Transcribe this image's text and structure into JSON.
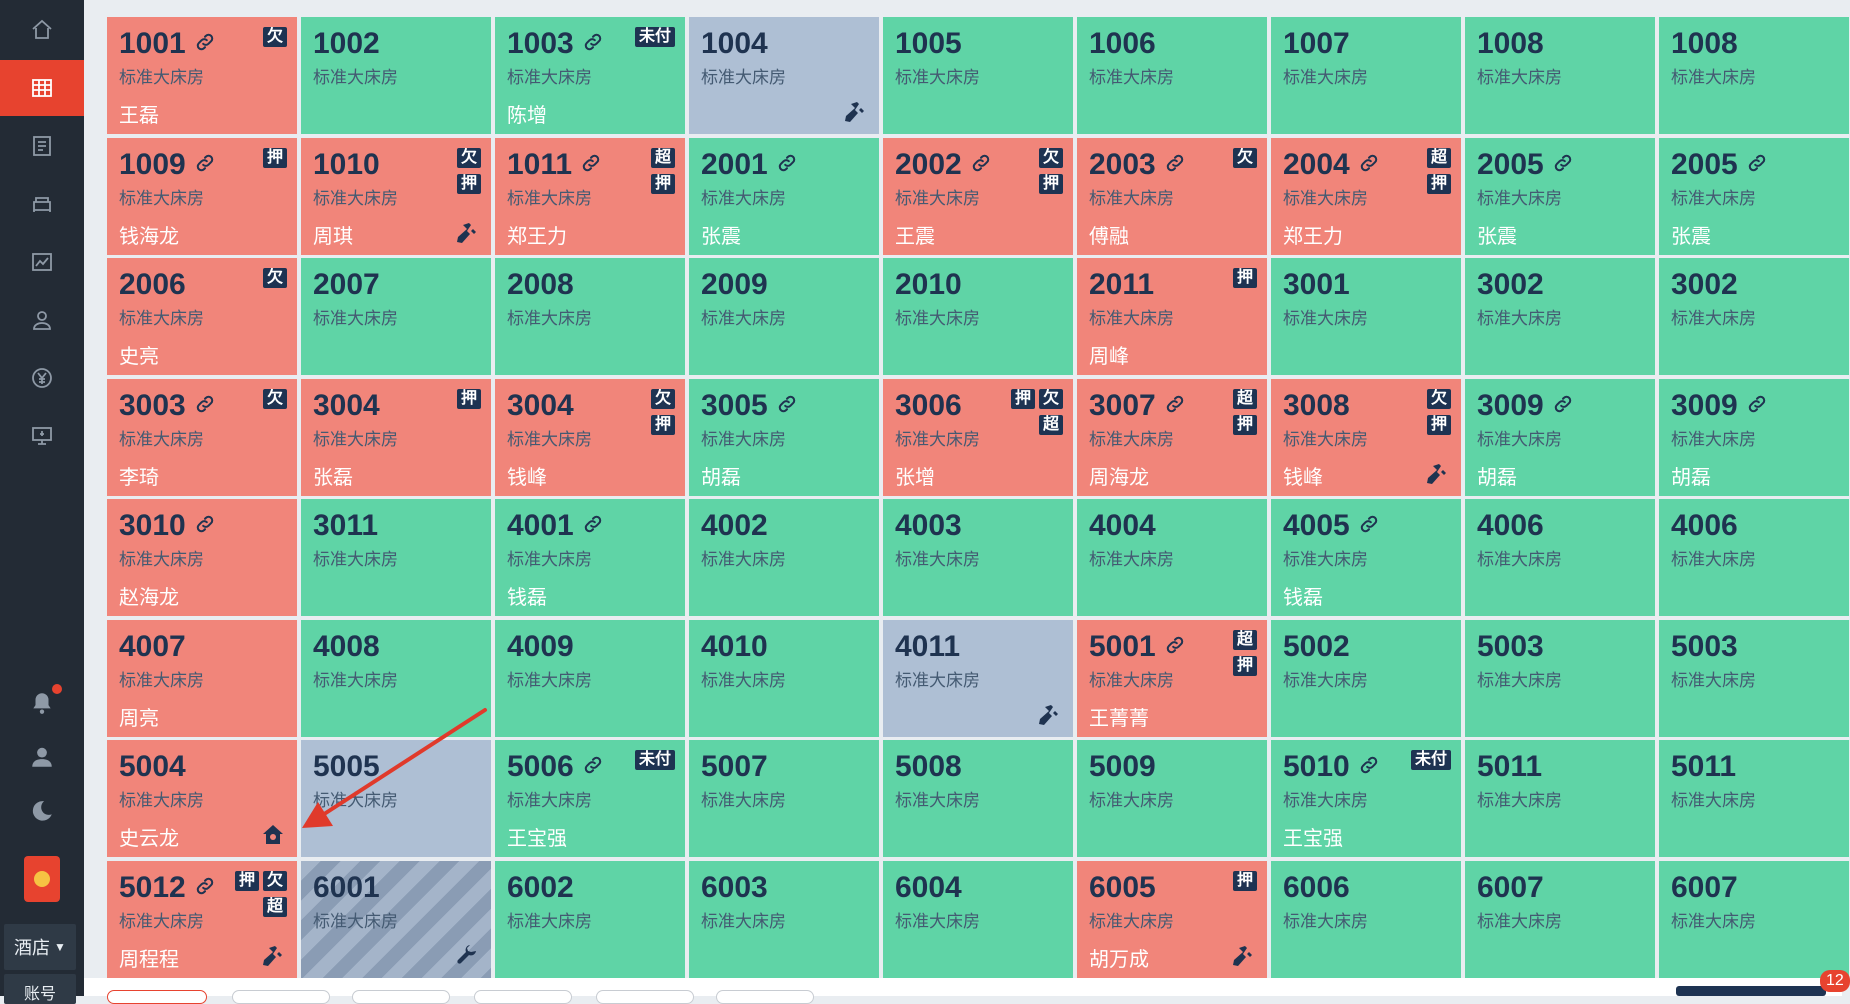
{
  "sidebar": {
    "nav": [
      {
        "name": "home-icon"
      },
      {
        "name": "room-grid-icon",
        "active": true
      },
      {
        "name": "orders-icon"
      },
      {
        "name": "rooms-icon"
      },
      {
        "name": "reports-icon"
      },
      {
        "name": "members-icon"
      },
      {
        "name": "finance-icon"
      },
      {
        "name": "screen-icon"
      }
    ],
    "hotel_label": "酒店",
    "account_label": "账号"
  },
  "notification_count": "12",
  "tags": {
    "owe": "欠",
    "deposit": "押",
    "over": "超",
    "unpaid": "未付"
  },
  "rooms": [
    {
      "no": "1001",
      "type": "标准大床房",
      "guest": "王磊",
      "status": "red",
      "link": true,
      "tags": [
        [
          "欠"
        ]
      ]
    },
    {
      "no": "1002",
      "type": "标准大床房",
      "guest": "",
      "status": "green",
      "link": false,
      "tags": []
    },
    {
      "no": "1003",
      "type": "标准大床房",
      "guest": "陈增",
      "status": "green",
      "link": true,
      "tags": [
        [
          "未付"
        ]
      ]
    },
    {
      "no": "1004",
      "type": "标准大床房",
      "guest": "",
      "status": "gray",
      "link": false,
      "tags": [],
      "tool": "broom"
    },
    {
      "no": "1005",
      "type": "标准大床房",
      "guest": "",
      "status": "green",
      "link": false,
      "tags": []
    },
    {
      "no": "1006",
      "type": "标准大床房",
      "guest": "",
      "status": "green",
      "link": false,
      "tags": []
    },
    {
      "no": "1007",
      "type": "标准大床房",
      "guest": "",
      "status": "green",
      "link": false,
      "tags": []
    },
    {
      "no": "1008",
      "type": "标准大床房",
      "guest": "",
      "status": "green",
      "link": false,
      "tags": []
    },
    {
      "no": "1008",
      "type": "标准大床房",
      "guest": "",
      "status": "green",
      "link": false,
      "tags": []
    },
    {
      "no": "1009",
      "type": "标准大床房",
      "guest": "钱海龙",
      "status": "red",
      "link": true,
      "tags": [
        [
          "押"
        ]
      ]
    },
    {
      "no": "1010",
      "type": "标准大床房",
      "guest": "周琪",
      "status": "red",
      "link": false,
      "tags": [
        [
          "欠"
        ],
        [
          "押"
        ]
      ],
      "tool": "broom"
    },
    {
      "no": "1011",
      "type": "标准大床房",
      "guest": "郑王力",
      "status": "red",
      "link": true,
      "tags": [
        [
          "超"
        ],
        [
          "押"
        ]
      ]
    },
    {
      "no": "2001",
      "type": "标准大床房",
      "guest": "张震",
      "status": "green",
      "link": true,
      "tags": []
    },
    {
      "no": "2002",
      "type": "标准大床房",
      "guest": "王震",
      "status": "red",
      "link": true,
      "tags": [
        [
          "欠"
        ],
        [
          "押"
        ]
      ]
    },
    {
      "no": "2003",
      "type": "标准大床房",
      "guest": "傅融",
      "status": "red",
      "link": true,
      "tags": [
        [
          "欠"
        ]
      ]
    },
    {
      "no": "2004",
      "type": "标准大床房",
      "guest": "郑王力",
      "status": "red",
      "link": true,
      "tags": [
        [
          "超"
        ],
        [
          "押"
        ]
      ]
    },
    {
      "no": "2005",
      "type": "标准大床房",
      "guest": "张震",
      "status": "green",
      "link": true,
      "tags": []
    },
    {
      "no": "2005",
      "type": "标准大床房",
      "guest": "张震",
      "status": "green",
      "link": true,
      "tags": []
    },
    {
      "no": "2006",
      "type": "标准大床房",
      "guest": "史亮",
      "status": "red",
      "link": false,
      "tags": [
        [
          "欠"
        ]
      ]
    },
    {
      "no": "2007",
      "type": "标准大床房",
      "guest": "",
      "status": "green",
      "link": false,
      "tags": []
    },
    {
      "no": "2008",
      "type": "标准大床房",
      "guest": "",
      "status": "green",
      "link": false,
      "tags": []
    },
    {
      "no": "2009",
      "type": "标准大床房",
      "guest": "",
      "status": "green",
      "link": false,
      "tags": []
    },
    {
      "no": "2010",
      "type": "标准大床房",
      "guest": "",
      "status": "green",
      "link": false,
      "tags": []
    },
    {
      "no": "2011",
      "type": "标准大床房",
      "guest": "周峰",
      "status": "red",
      "link": false,
      "tags": [
        [
          "押"
        ]
      ]
    },
    {
      "no": "3001",
      "type": "标准大床房",
      "guest": "",
      "status": "green",
      "link": false,
      "tags": []
    },
    {
      "no": "3002",
      "type": "标准大床房",
      "guest": "",
      "status": "green",
      "link": false,
      "tags": []
    },
    {
      "no": "3002",
      "type": "标准大床房",
      "guest": "",
      "status": "green",
      "link": false,
      "tags": []
    },
    {
      "no": "3003",
      "type": "标准大床房",
      "guest": "李琦",
      "status": "red",
      "link": true,
      "tags": [
        [
          "欠"
        ]
      ]
    },
    {
      "no": "3004",
      "type": "标准大床房",
      "guest": "张磊",
      "status": "red",
      "link": false,
      "tags": [
        [
          "押"
        ]
      ]
    },
    {
      "no": "3004",
      "type": "标准大床房",
      "guest": "钱峰",
      "status": "red",
      "link": false,
      "tags": [
        [
          "欠"
        ],
        [
          "押"
        ]
      ]
    },
    {
      "no": "3005",
      "type": "标准大床房",
      "guest": "胡磊",
      "status": "green",
      "link": true,
      "tags": []
    },
    {
      "no": "3006",
      "type": "标准大床房",
      "guest": "张增",
      "status": "red",
      "link": false,
      "tags": [
        [
          "押",
          "欠"
        ],
        [
          "超"
        ]
      ]
    },
    {
      "no": "3007",
      "type": "标准大床房",
      "guest": "周海龙",
      "status": "red",
      "link": true,
      "tags": [
        [
          "超"
        ],
        [
          "押"
        ]
      ]
    },
    {
      "no": "3008",
      "type": "标准大床房",
      "guest": "钱峰",
      "status": "red",
      "link": false,
      "tags": [
        [
          "欠"
        ],
        [
          "押"
        ]
      ],
      "tool": "broom"
    },
    {
      "no": "3009",
      "type": "标准大床房",
      "guest": "胡磊",
      "status": "green",
      "link": true,
      "tags": []
    },
    {
      "no": "3009",
      "type": "标准大床房",
      "guest": "胡磊",
      "status": "green",
      "link": true,
      "tags": []
    },
    {
      "no": "3010",
      "type": "标准大床房",
      "guest": "赵海龙",
      "status": "red",
      "link": true,
      "tags": []
    },
    {
      "no": "3011",
      "type": "标准大床房",
      "guest": "",
      "status": "green",
      "link": false,
      "tags": []
    },
    {
      "no": "4001",
      "type": "标准大床房",
      "guest": "钱磊",
      "status": "green",
      "link": true,
      "tags": []
    },
    {
      "no": "4002",
      "type": "标准大床房",
      "guest": "",
      "status": "green",
      "link": false,
      "tags": []
    },
    {
      "no": "4003",
      "type": "标准大床房",
      "guest": "",
      "status": "green",
      "link": false,
      "tags": []
    },
    {
      "no": "4004",
      "type": "标准大床房",
      "guest": "",
      "status": "green",
      "link": false,
      "tags": []
    },
    {
      "no": "4005",
      "type": "标准大床房",
      "guest": "钱磊",
      "status": "green",
      "link": true,
      "tags": []
    },
    {
      "no": "4006",
      "type": "标准大床房",
      "guest": "",
      "status": "green",
      "link": false,
      "tags": []
    },
    {
      "no": "4006",
      "type": "标准大床房",
      "guest": "",
      "status": "green",
      "link": false,
      "tags": []
    },
    {
      "no": "4007",
      "type": "标准大床房",
      "guest": "周亮",
      "status": "red",
      "link": false,
      "tags": []
    },
    {
      "no": "4008",
      "type": "标准大床房",
      "guest": "",
      "status": "green",
      "link": false,
      "tags": []
    },
    {
      "no": "4009",
      "type": "标准大床房",
      "guest": "",
      "status": "green",
      "link": false,
      "tags": []
    },
    {
      "no": "4010",
      "type": "标准大床房",
      "guest": "",
      "status": "green",
      "link": false,
      "tags": []
    },
    {
      "no": "4011",
      "type": "标准大床房",
      "guest": "",
      "status": "gray",
      "link": false,
      "tags": [],
      "tool": "broom"
    },
    {
      "no": "5001",
      "type": "标准大床房",
      "guest": "王菁菁",
      "status": "red",
      "link": true,
      "tags": [
        [
          "超"
        ],
        [
          "押"
        ]
      ]
    },
    {
      "no": "5002",
      "type": "标准大床房",
      "guest": "",
      "status": "green",
      "link": false,
      "tags": []
    },
    {
      "no": "5003",
      "type": "标准大床房",
      "guest": "",
      "status": "green",
      "link": false,
      "tags": []
    },
    {
      "no": "5003",
      "type": "标准大床房",
      "guest": "",
      "status": "green",
      "link": false,
      "tags": []
    },
    {
      "no": "5004",
      "type": "标准大床房",
      "guest": "史云龙",
      "status": "red",
      "link": false,
      "tags": [],
      "tool": "home"
    },
    {
      "no": "5005",
      "type": "标准大床房",
      "guest": "",
      "status": "gray",
      "link": false,
      "tags": []
    },
    {
      "no": "5006",
      "type": "标准大床房",
      "guest": "王宝强",
      "status": "green",
      "link": true,
      "tags": [
        [
          "未付"
        ]
      ]
    },
    {
      "no": "5007",
      "type": "标准大床房",
      "guest": "",
      "status": "green",
      "link": false,
      "tags": []
    },
    {
      "no": "5008",
      "type": "标准大床房",
      "guest": "",
      "status": "green",
      "link": false,
      "tags": []
    },
    {
      "no": "5009",
      "type": "标准大床房",
      "guest": "",
      "status": "green",
      "link": false,
      "tags": []
    },
    {
      "no": "5010",
      "type": "标准大床房",
      "guest": "王宝强",
      "status": "green",
      "link": true,
      "tags": [
        [
          "未付"
        ]
      ]
    },
    {
      "no": "5011",
      "type": "标准大床房",
      "guest": "",
      "status": "green",
      "link": false,
      "tags": []
    },
    {
      "no": "5011",
      "type": "标准大床房",
      "guest": "",
      "status": "green",
      "link": false,
      "tags": []
    },
    {
      "no": "5012",
      "type": "标准大床房",
      "guest": "周程程",
      "status": "red",
      "link": true,
      "tags": [
        [
          "押",
          "欠"
        ],
        [
          "超"
        ]
      ],
      "tool": "broom"
    },
    {
      "no": "6001",
      "type": "标准大床房",
      "guest": "",
      "status": "hatched",
      "link": false,
      "tags": [],
      "tool": "wrench"
    },
    {
      "no": "6002",
      "type": "标准大床房",
      "guest": "",
      "status": "green",
      "link": false,
      "tags": []
    },
    {
      "no": "6003",
      "type": "标准大床房",
      "guest": "",
      "status": "green",
      "link": false,
      "tags": []
    },
    {
      "no": "6004",
      "type": "标准大床房",
      "guest": "",
      "status": "green",
      "link": false,
      "tags": []
    },
    {
      "no": "6005",
      "type": "标准大床房",
      "guest": "胡万成",
      "status": "red",
      "link": false,
      "tags": [
        [
          "押"
        ]
      ],
      "tool": "broom"
    },
    {
      "no": "6006",
      "type": "标准大床房",
      "guest": "",
      "status": "green",
      "link": false,
      "tags": []
    },
    {
      "no": "6007",
      "type": "标准大床房",
      "guest": "",
      "status": "green",
      "link": false,
      "tags": []
    },
    {
      "no": "6007",
      "type": "标准大床房",
      "guest": "",
      "status": "green",
      "link": false,
      "tags": []
    }
  ]
}
